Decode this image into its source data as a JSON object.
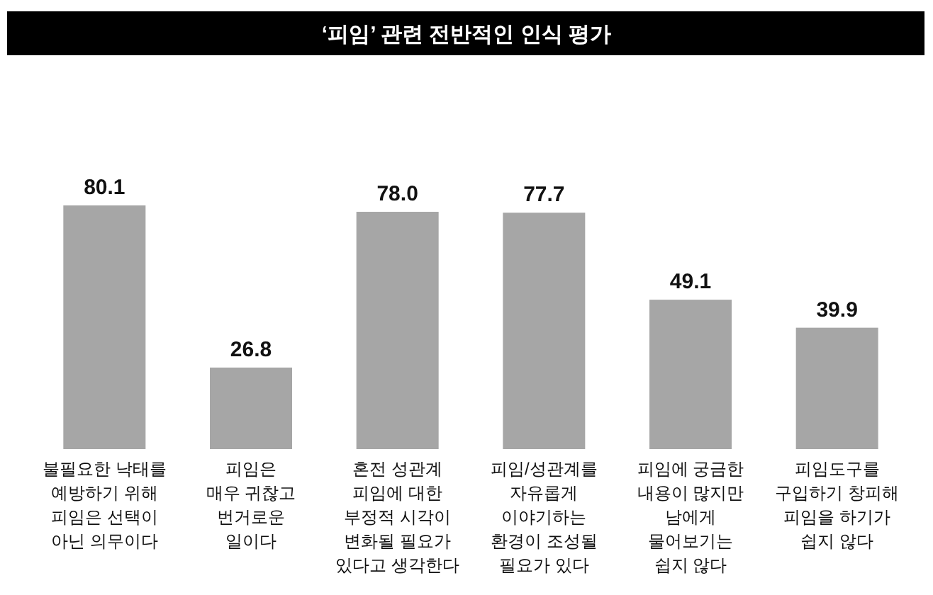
{
  "chart_data": {
    "type": "bar",
    "title": "‘피임’ 관련 전반적인 인식 평가",
    "categories": [
      "불필요한 낙태를\n예방하기 위해\n피임은 선택이\n아닌 의무이다",
      "피임은\n매우 귀찮고\n번거로운\n일이다",
      "혼전 성관계\n피임에 대한\n부정적 시각이\n변화될 필요가\n있다고 생각한다",
      "피임/성관계를\n자유롭게\n이야기하는\n환경이 조성될\n필요가 있다",
      "피임에 궁금한\n내용이 많지만\n남에게\n물어보기는\n쉽지 않다",
      "피임도구를\n구입하기 창피해\n피임을 하기가\n쉽지 않다"
    ],
    "values": [
      80.1,
      26.8,
      78.0,
      77.7,
      49.1,
      39.9
    ],
    "value_labels": [
      "80.1",
      "26.8",
      "78.0",
      "77.7",
      "49.1",
      "39.9"
    ],
    "color": "#a6a6a6",
    "grid": false
  }
}
